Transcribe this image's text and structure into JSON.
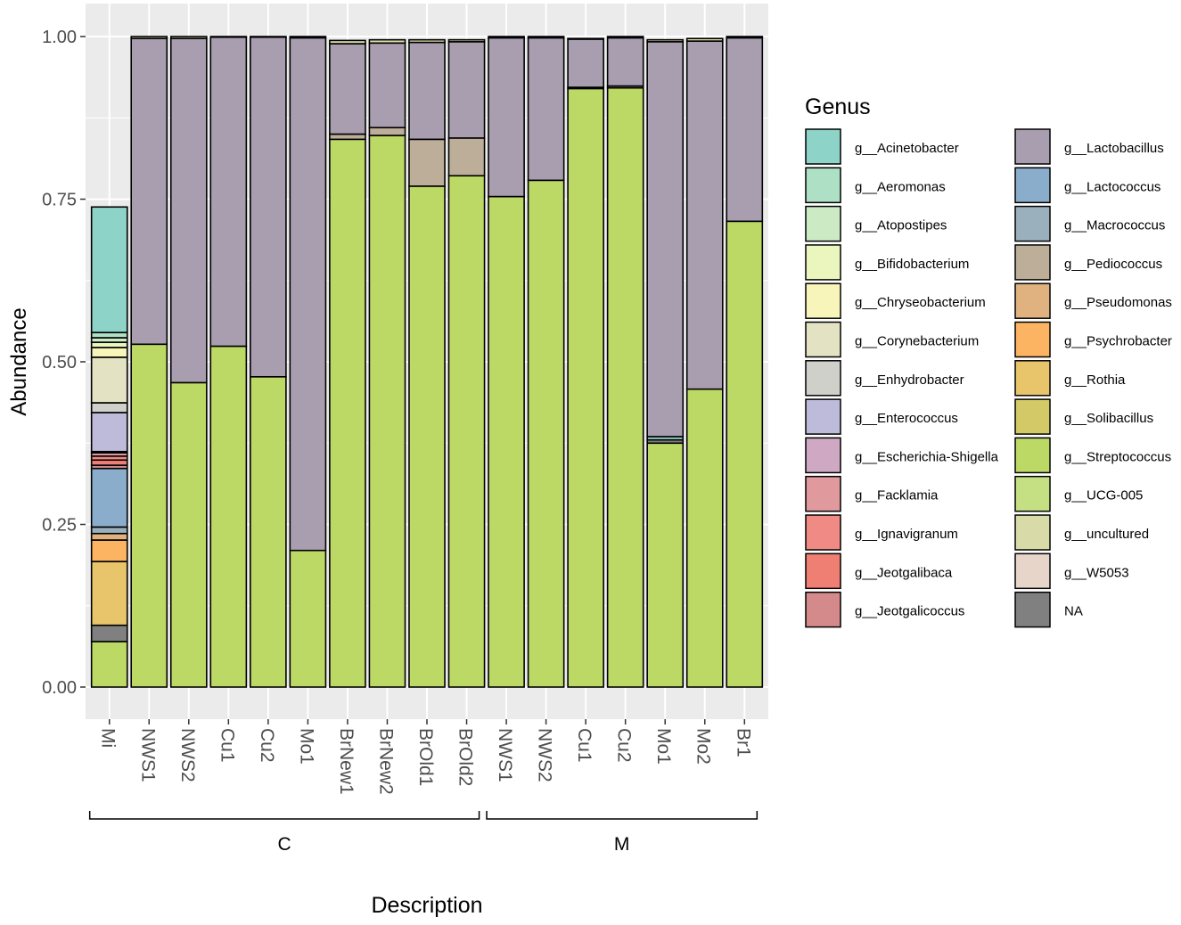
{
  "chart_data": {
    "type": "bar",
    "stacked": true,
    "xlabel": "Description",
    "ylabel": "Abundance",
    "ylim": [
      0,
      1.0
    ],
    "yticks": [
      0.0,
      0.25,
      0.5,
      0.75,
      1.0
    ],
    "ytick_labels": [
      "0.00",
      "0.25",
      "0.50",
      "0.75",
      "1.00"
    ],
    "grid": true,
    "categories": [
      "Mi",
      "NWS1",
      "NWS2",
      "Cu1",
      "Cu2",
      "Mo1",
      "BrNew1",
      "BrNew2",
      "BrOld1",
      "BrOld2",
      "NWS1",
      "NWS2",
      "Cu1",
      "Cu2",
      "Mo1",
      "Mo2",
      "Br1"
    ],
    "groups": [
      {
        "label": "C",
        "from": 0,
        "to": 9
      },
      {
        "label": "M",
        "from": 10,
        "to": 16
      }
    ],
    "legend_title": "Genus",
    "legend_position": "right",
    "legend": [
      {
        "name": "g__Acinetobacter",
        "color": "#8DD3C7"
      },
      {
        "name": "g__Aeromonas",
        "color": "#AEE0C6"
      },
      {
        "name": "g__Atopostipes",
        "color": "#CCEBC5"
      },
      {
        "name": "g__Bifidobacterium",
        "color": "#EAF6BE"
      },
      {
        "name": "g__Chryseobacterium",
        "color": "#F8F5BA"
      },
      {
        "name": "g__Corynebacterium",
        "color": "#E3E2C2"
      },
      {
        "name": "g__Enhydrobacter",
        "color": "#D0D0CB"
      },
      {
        "name": "g__Enterococcus",
        "color": "#BEBADA"
      },
      {
        "name": "g__Escherichia-Shigella",
        "color": "#CFA9C4"
      },
      {
        "name": "g__Facklamia",
        "color": "#E09A9E"
      },
      {
        "name": "g__Ignavigranum",
        "color": "#EF8A85"
      },
      {
        "name": "g__Jeotgalibaca",
        "color": "#EF7F73"
      },
      {
        "name": "g__Jeotgalicoccus",
        "color": "#D48A8A"
      },
      {
        "name": "g__Lactobacillus",
        "color": "#A99EB0"
      },
      {
        "name": "g__Lactococcus",
        "color": "#8BADCC"
      },
      {
        "name": "g__Macrococcus",
        "color": "#9AB0BC"
      },
      {
        "name": "g__Pediococcus",
        "color": "#BCAE99"
      },
      {
        "name": "g__Pseudomonas",
        "color": "#E0B27F"
      },
      {
        "name": "g__Psychrobacter",
        "color": "#FCB462"
      },
      {
        "name": "g__Rothia",
        "color": "#E8C46A"
      },
      {
        "name": "g__Solibacillus",
        "color": "#D3CA67"
      },
      {
        "name": "g__Streptococcus",
        "color": "#BDD965"
      },
      {
        "name": "g__UCG-005",
        "color": "#C5E082"
      },
      {
        "name": "g__uncultured",
        "color": "#D8DBA8"
      },
      {
        "name": "g__W5053",
        "color": "#E8D5C9"
      },
      {
        "name": "NA",
        "color": "#808080"
      }
    ],
    "series": [
      {
        "name": "g__Streptococcus",
        "values": [
          0.07,
          0.527,
          0.468,
          0.524,
          0.477,
          0.21,
          0.842,
          0.848,
          0.77,
          0.786,
          0.754,
          0.779,
          0.92,
          0.921,
          0.375,
          0.458,
          0.716
        ]
      },
      {
        "name": "NA",
        "values": [
          0.025,
          0,
          0,
          0,
          0,
          0,
          0,
          0,
          0,
          0,
          0,
          0,
          0.002,
          0.003,
          0.005,
          0,
          0
        ]
      },
      {
        "name": "g__Rothia",
        "values": [
          0.098,
          0,
          0,
          0,
          0,
          0,
          0,
          0,
          0,
          0,
          0,
          0,
          0,
          0,
          0,
          0,
          0
        ]
      },
      {
        "name": "g__Psychrobacter",
        "values": [
          0.033,
          0,
          0,
          0,
          0,
          0,
          0,
          0,
          0,
          0,
          0,
          0,
          0,
          0,
          0,
          0,
          0
        ]
      },
      {
        "name": "g__Pseudomonas",
        "values": [
          0.01,
          0,
          0,
          0,
          0,
          0,
          0,
          0,
          0,
          0,
          0,
          0,
          0,
          0,
          0,
          0,
          0
        ]
      },
      {
        "name": "g__Macrococcus",
        "values": [
          0.01,
          0,
          0,
          0,
          0,
          0,
          0,
          0,
          0,
          0,
          0,
          0,
          0,
          0,
          0,
          0,
          0
        ]
      },
      {
        "name": "g__Lactococcus",
        "values": [
          0.09,
          0,
          0,
          0,
          0,
          0,
          0,
          0,
          0,
          0,
          0,
          0,
          0,
          0,
          0,
          0,
          0
        ]
      },
      {
        "name": "g__Jeotgalicoccus",
        "values": [
          0.005,
          0,
          0,
          0,
          0,
          0,
          0,
          0,
          0,
          0,
          0,
          0,
          0,
          0,
          0,
          0,
          0
        ]
      },
      {
        "name": "g__Jeotgalibaca",
        "values": [
          0.008,
          0,
          0,
          0,
          0,
          0,
          0,
          0,
          0,
          0,
          0,
          0,
          0,
          0,
          0,
          0,
          0
        ]
      },
      {
        "name": "g__Ignavigranum",
        "values": [
          0.006,
          0,
          0,
          0,
          0,
          0,
          0,
          0,
          0,
          0,
          0,
          0,
          0,
          0,
          0,
          0,
          0
        ]
      },
      {
        "name": "g__Facklamia",
        "values": [
          0.005,
          0,
          0,
          0,
          0,
          0,
          0,
          0,
          0,
          0,
          0,
          0,
          0,
          0,
          0,
          0,
          0
        ]
      },
      {
        "name": "g__Escherichia-Shigella",
        "values": [
          0.002,
          0,
          0,
          0,
          0,
          0,
          0,
          0,
          0,
          0,
          0,
          0,
          0,
          0,
          0,
          0,
          0
        ]
      },
      {
        "name": "g__Enterococcus",
        "values": [
          0.06,
          0,
          0,
          0,
          0,
          0,
          0,
          0,
          0,
          0,
          0,
          0,
          0,
          0,
          0,
          0,
          0
        ]
      },
      {
        "name": "g__Enhydrobacter",
        "values": [
          0.015,
          0,
          0,
          0,
          0,
          0,
          0,
          0,
          0,
          0,
          0,
          0,
          0,
          0,
          0,
          0,
          0
        ]
      },
      {
        "name": "g__Corynebacterium",
        "values": [
          0.07,
          0,
          0,
          0,
          0,
          0,
          0,
          0,
          0,
          0,
          0,
          0,
          0,
          0,
          0,
          0,
          0
        ]
      },
      {
        "name": "g__Chryseobacterium",
        "values": [
          0.015,
          0,
          0,
          0,
          0,
          0,
          0,
          0,
          0,
          0,
          0,
          0,
          0,
          0,
          0,
          0,
          0
        ]
      },
      {
        "name": "g__Bifidobacterium",
        "values": [
          0.008,
          0,
          0,
          0,
          0,
          0,
          0,
          0,
          0,
          0,
          0,
          0,
          0,
          0,
          0,
          0,
          0
        ]
      },
      {
        "name": "g__Atopostipes",
        "values": [
          0.007,
          0,
          0,
          0,
          0,
          0,
          0,
          0,
          0,
          0,
          0,
          0,
          0,
          0,
          0,
          0,
          0
        ]
      },
      {
        "name": "g__Aeromonas",
        "values": [
          0.008,
          0,
          0,
          0,
          0,
          0,
          0,
          0,
          0,
          0,
          0,
          0,
          0,
          0,
          0,
          0,
          0
        ]
      },
      {
        "name": "g__Acinetobacter",
        "values": [
          0.193,
          0,
          0,
          0,
          0,
          0,
          0,
          0,
          0,
          0,
          0,
          0,
          0,
          0,
          0.005,
          0,
          0
        ]
      },
      {
        "name": "g__Pediococcus",
        "values": [
          0,
          0,
          0,
          0,
          0,
          0,
          0.008,
          0.012,
          0.072,
          0.058,
          0,
          0,
          0,
          0,
          0,
          0,
          0
        ]
      },
      {
        "name": "g__Lactobacillus",
        "values": [
          0,
          0.47,
          0.529,
          0.475,
          0.522,
          0.788,
          0.139,
          0.13,
          0.149,
          0.148,
          0.244,
          0.219,
          0.074,
          0.074,
          0.607,
          0.535,
          0.282
        ]
      },
      {
        "name": "g__uncultured",
        "values": [
          0,
          0.003,
          0.003,
          0.001,
          0.001,
          0.002,
          0.005,
          0.005,
          0.004,
          0.003,
          0.002,
          0.002,
          0.001,
          0.002,
          0.003,
          0.004,
          0.002
        ]
      }
    ]
  }
}
